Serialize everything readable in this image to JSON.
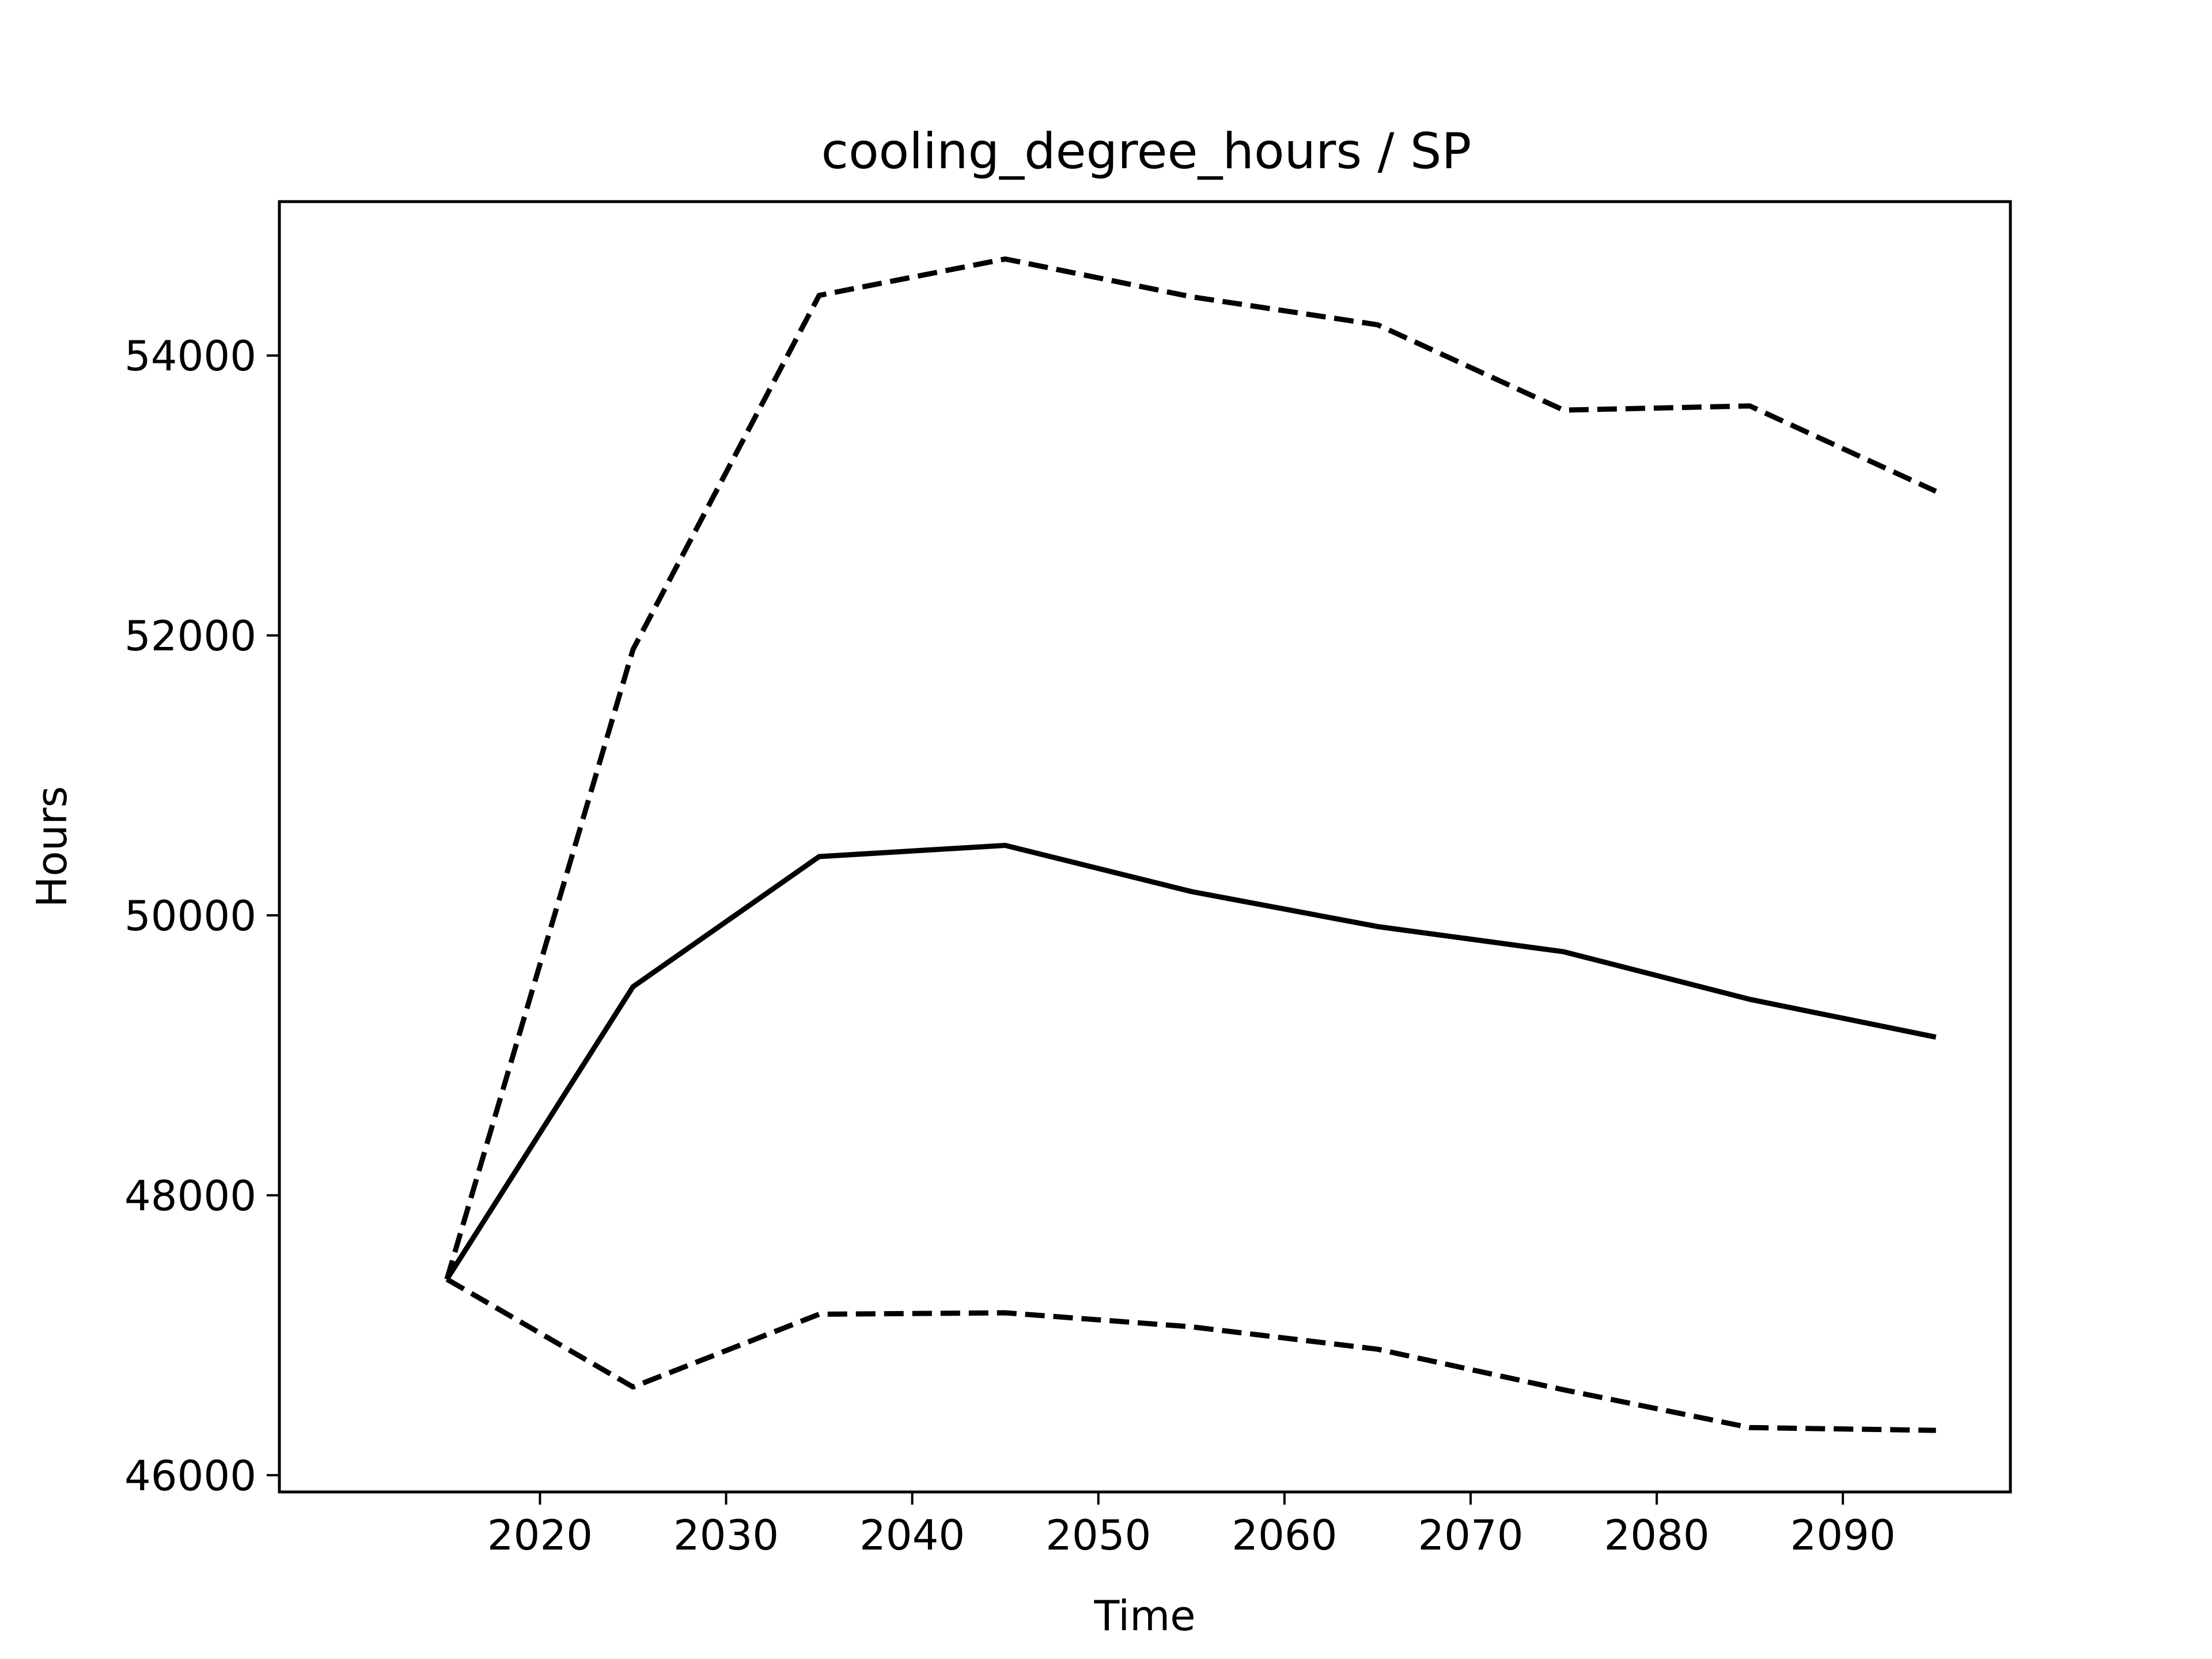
{
  "chart_data": {
    "type": "line",
    "title": "cooling_degree_hours / SP",
    "xlabel": "Time",
    "ylabel": "Hours",
    "x": [
      2015,
      2025,
      2035,
      2045,
      2055,
      2065,
      2075,
      2085,
      2095
    ],
    "xlim": [
      2006,
      2099
    ],
    "ylim": [
      45880,
      55100
    ],
    "xticks": [
      2020,
      2030,
      2040,
      2050,
      2060,
      2070,
      2080,
      2090
    ],
    "yticks": [
      46000,
      48000,
      50000,
      52000,
      54000
    ],
    "grid": false,
    "series": [
      {
        "style": "dashed",
        "color": "#000000",
        "values": [
          47400,
          51900,
          54430,
          54690,
          54420,
          54220,
          53610,
          53640,
          53030
        ]
      },
      {
        "style": "solid",
        "color": "#000000",
        "values": [
          47400,
          49490,
          50420,
          50500,
          50170,
          49920,
          49740,
          49400,
          49130
        ]
      },
      {
        "style": "dashed",
        "color": "#000000",
        "values": [
          47400,
          46630,
          47150,
          47160,
          47060,
          46900,
          46610,
          46340,
          46320
        ]
      }
    ]
  }
}
